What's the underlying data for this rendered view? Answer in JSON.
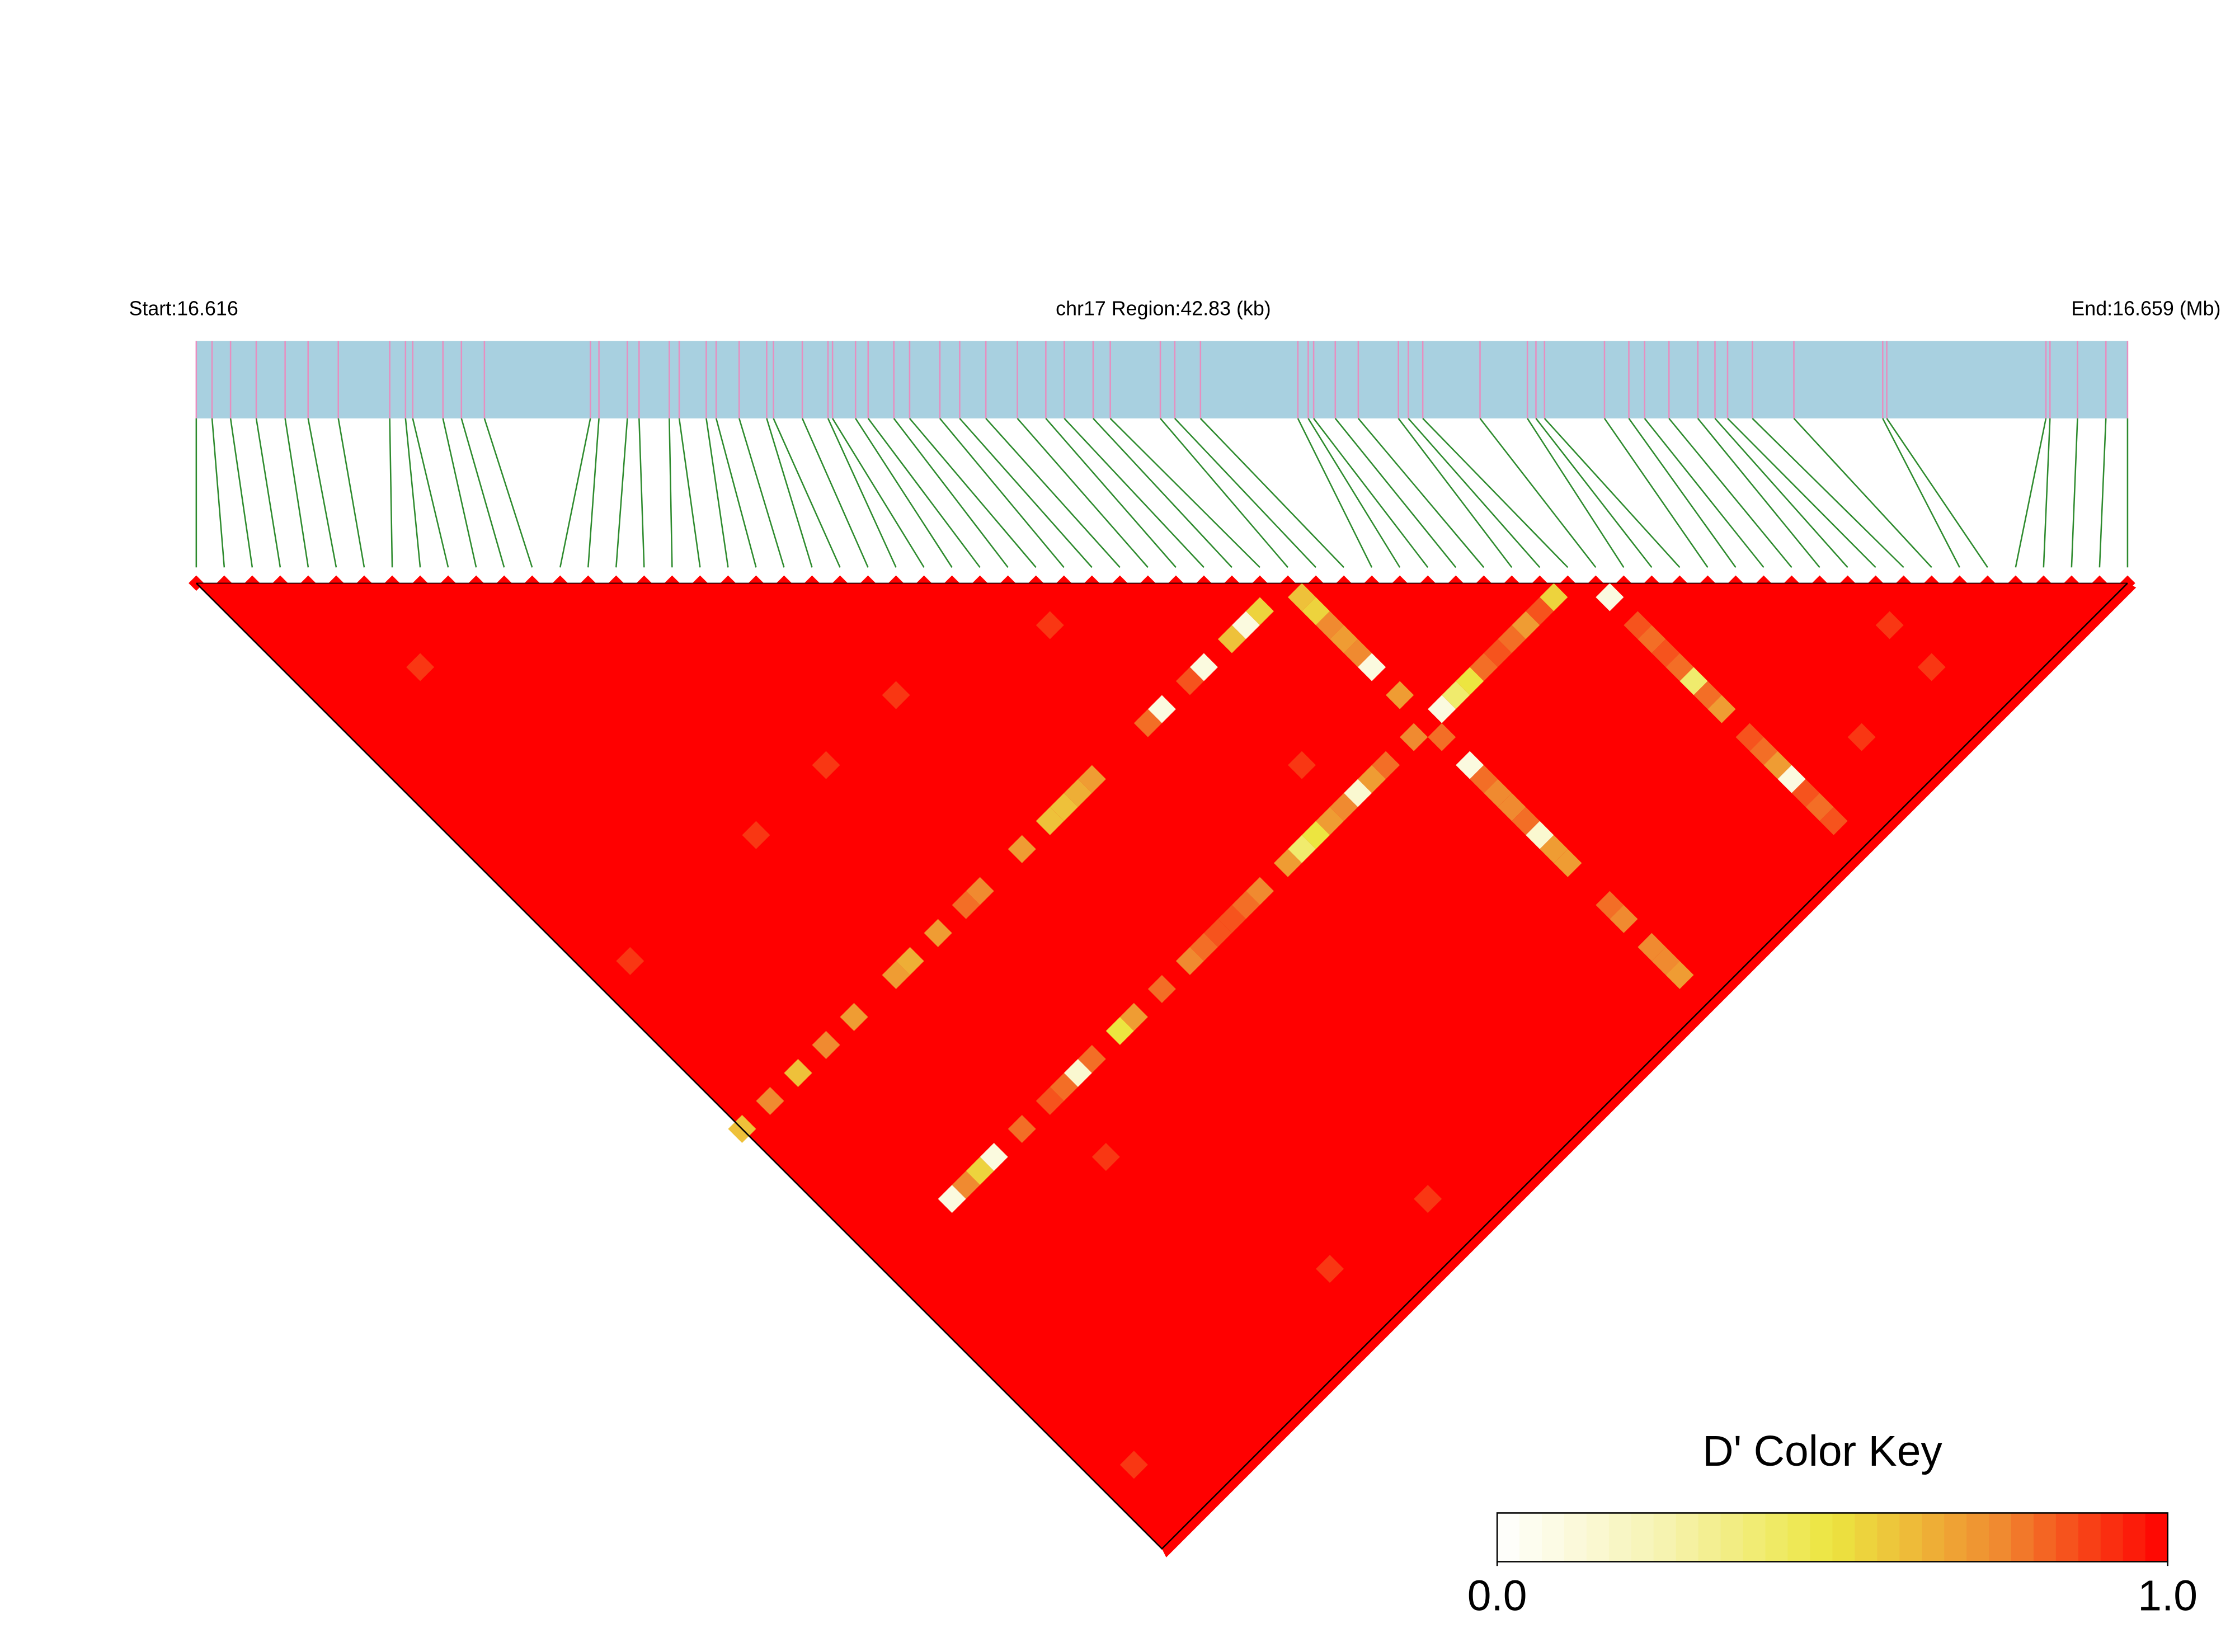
{
  "chart_data": {
    "type": "ld_heatmap",
    "start_label": "Start:16.616",
    "region_label": "chr17 Region:42.83 (kb)",
    "end_label": "End:16.659 (Mb)",
    "key_title": "D' Color Key",
    "key_lim": [
      0,
      1
    ],
    "key_ticks": [
      {
        "value": 0,
        "label": "0.0"
      },
      {
        "value": 1,
        "label": "1.0"
      }
    ],
    "colormap": [
      "#ffffff",
      "#f6f3b0",
      "#ece540",
      "#f08a30",
      "#ff0000"
    ],
    "track_color": "#a8d0e0",
    "snp_line_color": "#e68fc0",
    "connector_color": "#2e8b2e",
    "background_value": 1,
    "snp_positions": [
      16.616,
      16.61635,
      16.61676,
      16.61733,
      16.61797,
      16.61848,
      16.61915,
      16.62029,
      16.62064,
      16.6208,
      16.62147,
      16.62188,
      16.62239,
      16.62474,
      16.62493,
      16.62556,
      16.62582,
      16.62649,
      16.62671,
      16.62731,
      16.62753,
      16.62804,
      16.62865,
      16.6288,
      16.62944,
      16.63001,
      16.63011,
      16.63062,
      16.6309,
      16.63147,
      16.63182,
      16.63249,
      16.63293,
      16.63351,
      16.63421,
      16.63484,
      16.63525,
      16.63589,
      16.63627,
      16.63738,
      16.6377,
      16.63827,
      16.64043,
      16.64066,
      16.64078,
      16.64126,
      16.64177,
      16.64266,
      16.64288,
      16.6432,
      16.64447,
      16.64552,
      16.64571,
      16.6459,
      16.64723,
      16.64777,
      16.64812,
      16.64866,
      16.6493,
      16.64968,
      16.64996,
      16.65051,
      16.65143,
      16.6534,
      16.65349,
      16.65702,
      16.65711,
      16.65772,
      16.65835,
      16.65883
    ],
    "cells": [
      {
        "i": 37,
        "j": 39,
        "value": 0.55
      },
      {
        "i": 36,
        "j": 39,
        "value": 0.1
      },
      {
        "i": 35,
        "j": 39,
        "value": 0.6
      },
      {
        "i": 33,
        "j": 39,
        "value": 0.1
      },
      {
        "i": 32,
        "j": 39,
        "value": 0.85
      },
      {
        "i": 30,
        "j": 39,
        "value": 0.1
      },
      {
        "i": 29,
        "j": 39,
        "value": 0.8
      },
      {
        "i": 25,
        "j": 39,
        "value": 0.7
      },
      {
        "i": 24,
        "j": 39,
        "value": 0.65
      },
      {
        "i": 23,
        "j": 39,
        "value": 0.6
      },
      {
        "i": 22,
        "j": 39,
        "value": 0.6
      },
      {
        "i": 20,
        "j": 39,
        "value": 0.7
      },
      {
        "i": 17,
        "j": 39,
        "value": 0.75
      },
      {
        "i": 16,
        "j": 39,
        "value": 0.8
      },
      {
        "i": 14,
        "j": 39,
        "value": 0.7
      },
      {
        "i": 12,
        "j": 39,
        "value": 0.65
      },
      {
        "i": 11,
        "j": 39,
        "value": 0.7
      },
      {
        "i": 8,
        "j": 39,
        "value": 0.7
      },
      {
        "i": 6,
        "j": 39,
        "value": 0.75
      },
      {
        "i": 4,
        "j": 39,
        "value": 0.6
      },
      {
        "i": 2,
        "j": 39,
        "value": 0.75
      },
      {
        "i": 0,
        "j": 39,
        "value": 0.6
      },
      {
        "i": 39,
        "j": 40,
        "value": 0.6
      },
      {
        "i": 39,
        "j": 41,
        "value": 0.55
      },
      {
        "i": 39,
        "j": 42,
        "value": 0.75
      },
      {
        "i": 39,
        "j": 43,
        "value": 0.7
      },
      {
        "i": 39,
        "j": 44,
        "value": 0.75
      },
      {
        "i": 39,
        "j": 45,
        "value": 0.1
      },
      {
        "i": 39,
        "j": 47,
        "value": 0.7
      },
      {
        "i": 39,
        "j": 50,
        "value": 0.8
      },
      {
        "i": 39,
        "j": 52,
        "value": 0.1
      },
      {
        "i": 39,
        "j": 53,
        "value": 0.8
      },
      {
        "i": 39,
        "j": 54,
        "value": 0.75
      },
      {
        "i": 39,
        "j": 55,
        "value": 0.75
      },
      {
        "i": 39,
        "j": 56,
        "value": 0.8
      },
      {
        "i": 39,
        "j": 57,
        "value": 0.15
      },
      {
        "i": 39,
        "j": 58,
        "value": 0.7
      },
      {
        "i": 39,
        "j": 59,
        "value": 0.7
      },
      {
        "i": 39,
        "j": 62,
        "value": 0.8
      },
      {
        "i": 39,
        "j": 63,
        "value": 0.75
      },
      {
        "i": 39,
        "j": 65,
        "value": 0.75
      },
      {
        "i": 39,
        "j": 66,
        "value": 0.75
      },
      {
        "i": 39,
        "j": 67,
        "value": 0.7
      },
      {
        "i": 48,
        "j": 49,
        "value": 0.55
      },
      {
        "i": 47,
        "j": 49,
        "value": 0.85
      },
      {
        "i": 46,
        "j": 49,
        "value": 0.7
      },
      {
        "i": 45,
        "j": 49,
        "value": 0.8
      },
      {
        "i": 44,
        "j": 49,
        "value": 0.85
      },
      {
        "i": 43,
        "j": 49,
        "value": 0.8
      },
      {
        "i": 42,
        "j": 49,
        "value": 0.5
      },
      {
        "i": 41,
        "j": 49,
        "value": 0.4
      },
      {
        "i": 40,
        "j": 49,
        "value": 0.1
      },
      {
        "i": 38,
        "j": 49,
        "value": 0.75
      },
      {
        "i": 36,
        "j": 49,
        "value": 0.8
      },
      {
        "i": 35,
        "j": 49,
        "value": 0.7
      },
      {
        "i": 34,
        "j": 49,
        "value": 0.15
      },
      {
        "i": 33,
        "j": 49,
        "value": 0.75
      },
      {
        "i": 32,
        "j": 49,
        "value": 0.7
      },
      {
        "i": 31,
        "j": 49,
        "value": 0.5
      },
      {
        "i": 30,
        "j": 49,
        "value": 0.4
      },
      {
        "i": 29,
        "j": 49,
        "value": 0.7
      },
      {
        "i": 27,
        "j": 49,
        "value": 0.75
      },
      {
        "i": 26,
        "j": 49,
        "value": 0.8
      },
      {
        "i": 25,
        "j": 49,
        "value": 0.85
      },
      {
        "i": 24,
        "j": 49,
        "value": 0.85
      },
      {
        "i": 23,
        "j": 49,
        "value": 0.8
      },
      {
        "i": 22,
        "j": 49,
        "value": 0.75
      },
      {
        "i": 20,
        "j": 49,
        "value": 0.8
      },
      {
        "i": 18,
        "j": 49,
        "value": 0.7
      },
      {
        "i": 17,
        "j": 49,
        "value": 0.5
      },
      {
        "i": 15,
        "j": 49,
        "value": 0.8
      },
      {
        "i": 14,
        "j": 49,
        "value": 0.15
      },
      {
        "i": 13,
        "j": 49,
        "value": 0.8
      },
      {
        "i": 12,
        "j": 49,
        "value": 0.85
      },
      {
        "i": 10,
        "j": 49,
        "value": 0.8
      },
      {
        "i": 8,
        "j": 49,
        "value": 0.1
      },
      {
        "i": 7,
        "j": 49,
        "value": 0.55
      },
      {
        "i": 6,
        "j": 49,
        "value": 0.75
      },
      {
        "i": 5,
        "j": 49,
        "value": 0.1
      },
      {
        "i": 50,
        "j": 51,
        "value": 0.1
      },
      {
        "i": 50,
        "j": 53,
        "value": 0.85
      },
      {
        "i": 50,
        "j": 54,
        "value": 0.8
      },
      {
        "i": 50,
        "j": 55,
        "value": 0.85
      },
      {
        "i": 50,
        "j": 56,
        "value": 0.8
      },
      {
        "i": 50,
        "j": 57,
        "value": 0.4
      },
      {
        "i": 50,
        "j": 58,
        "value": 0.8
      },
      {
        "i": 50,
        "j": 59,
        "value": 0.7
      },
      {
        "i": 50,
        "j": 61,
        "value": 0.85
      },
      {
        "i": 50,
        "j": 62,
        "value": 0.8
      },
      {
        "i": 50,
        "j": 63,
        "value": 0.7
      },
      {
        "i": 50,
        "j": 64,
        "value": 0.1
      },
      {
        "i": 50,
        "j": 65,
        "value": 0.85
      },
      {
        "i": 50,
        "j": 66,
        "value": 0.8
      },
      {
        "i": 50,
        "j": 67,
        "value": 0.85
      },
      {
        "i": 5,
        "j": 11,
        "value": 0.9
      },
      {
        "i": 29,
        "j": 32,
        "value": 0.9
      },
      {
        "i": 21,
        "j": 29,
        "value": 0.9
      },
      {
        "i": 16,
        "j": 29,
        "value": 0.9
      },
      {
        "i": 2,
        "j": 29,
        "value": 0.9
      },
      {
        "i": 59,
        "j": 62,
        "value": 0.9
      },
      {
        "i": 59,
        "j": 65,
        "value": 0.9
      },
      {
        "i": 54,
        "j": 65,
        "value": 0.9
      },
      {
        "i": 33,
        "j": 46,
        "value": 0.9
      },
      {
        "i": 12,
        "j": 53,
        "value": 0.9
      },
      {
        "i": 22,
        "j": 66,
        "value": 0.9
      },
      {
        "i": 16,
        "j": 65,
        "value": 0.9
      },
      {
        "i": 2,
        "j": 65,
        "value": 0.9
      },
      {
        "i": 11,
        "j": 29,
        "value": 0.9
      }
    ]
  }
}
